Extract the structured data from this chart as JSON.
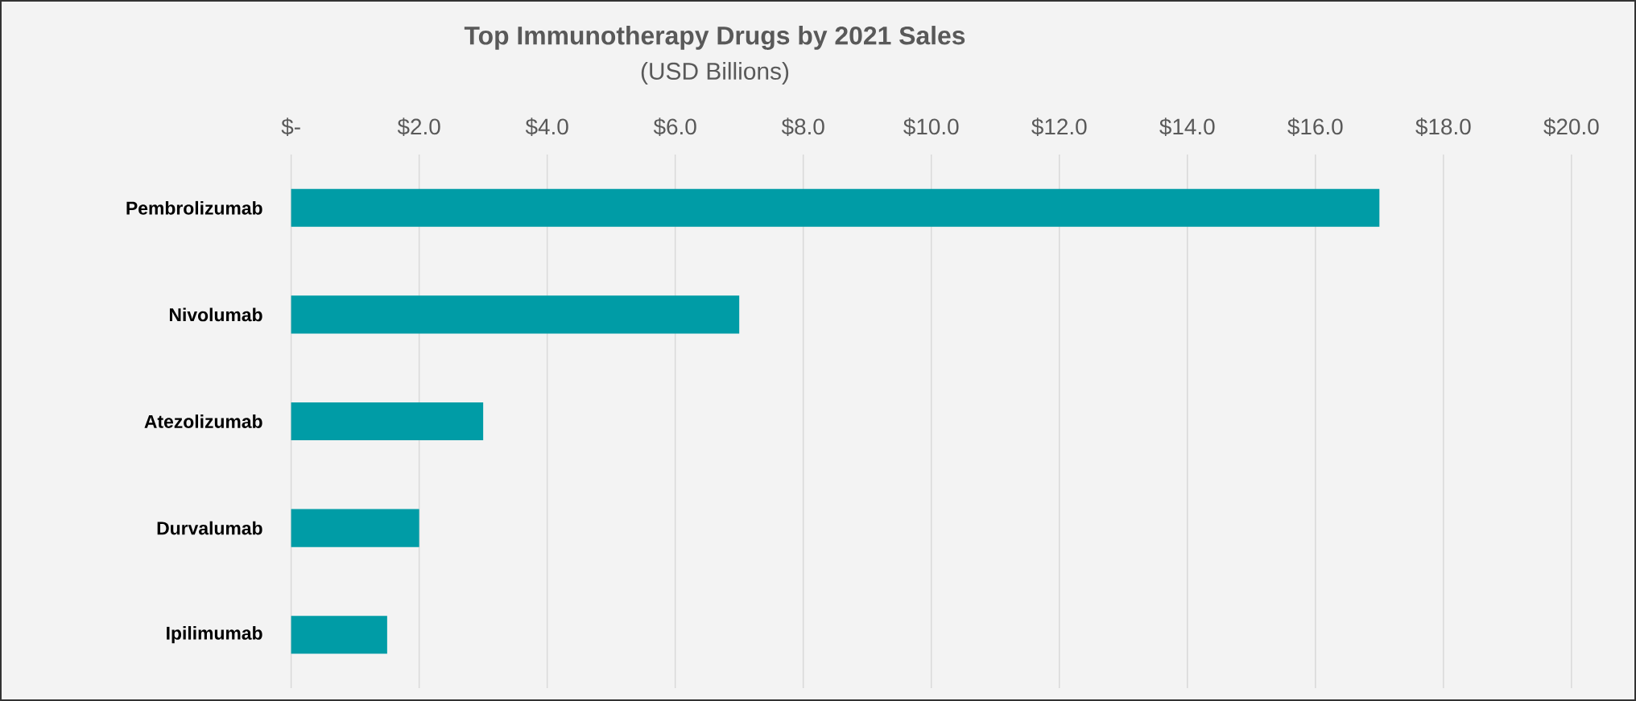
{
  "chart_data": {
    "type": "bar",
    "orientation": "horizontal",
    "title": "Top Immunotherapy Drugs by 2021 Sales",
    "subtitle": "(USD Billions)",
    "categories": [
      "Pembrolizumab",
      "Nivolumab",
      "Atezolizumab",
      "Durvalumab",
      "Ipilimumab"
    ],
    "values": [
      17.0,
      7.0,
      3.0,
      2.0,
      1.5
    ],
    "color": "#009ca6",
    "xlim": [
      0,
      20
    ],
    "xticks": [
      {
        "value": 0,
        "label": "$-"
      },
      {
        "value": 2,
        "label": "$2.0"
      },
      {
        "value": 4,
        "label": "$4.0"
      },
      {
        "value": 6,
        "label": "$6.0"
      },
      {
        "value": 8,
        "label": "$8.0"
      },
      {
        "value": 10,
        "label": "$10.0"
      },
      {
        "value": 12,
        "label": "$12.0"
      },
      {
        "value": 14,
        "label": "$14.0"
      },
      {
        "value": 16,
        "label": "$16.0"
      },
      {
        "value": 18,
        "label": "$18.0"
      },
      {
        "value": 20,
        "label": "$20.0"
      }
    ],
    "grid": "x"
  }
}
